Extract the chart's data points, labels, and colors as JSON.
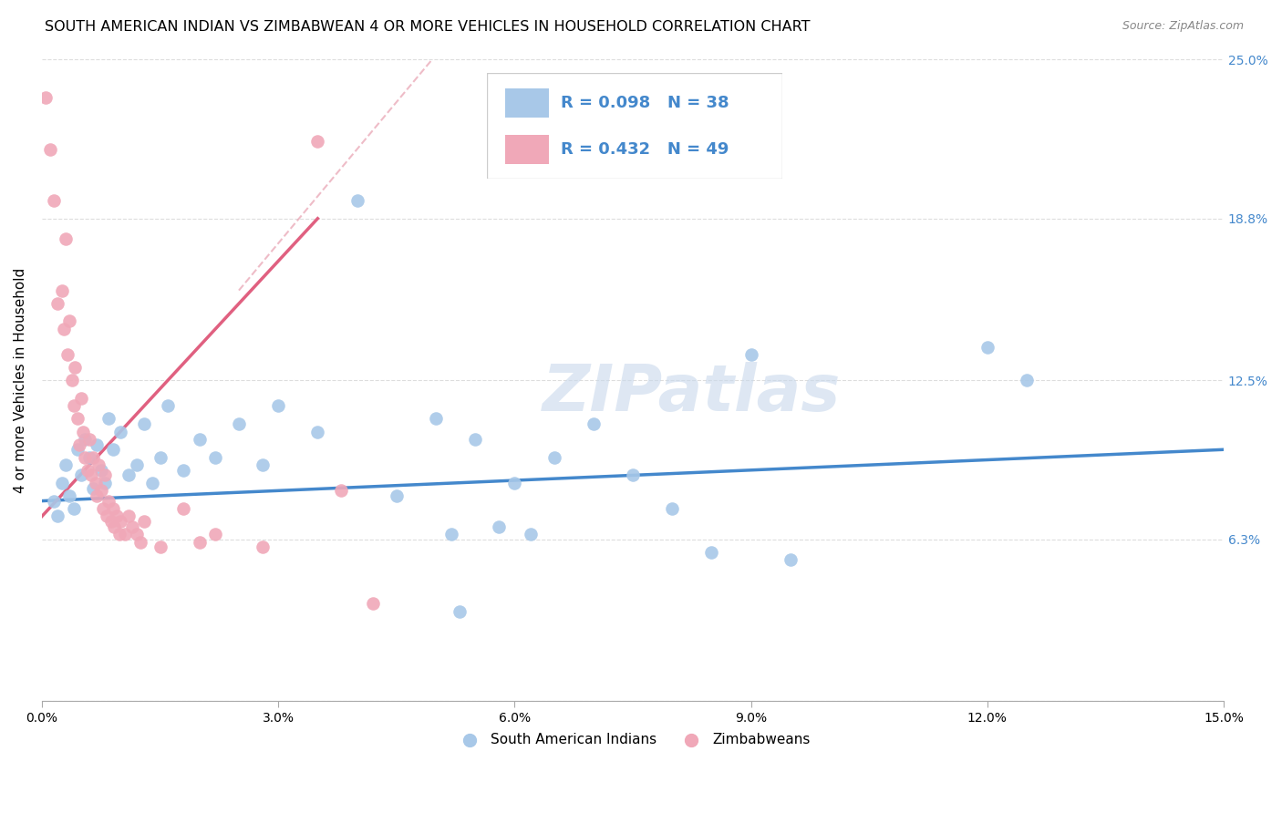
{
  "title": "SOUTH AMERICAN INDIAN VS ZIMBABWEAN 4 OR MORE VEHICLES IN HOUSEHOLD CORRELATION CHART",
  "source": "Source: ZipAtlas.com",
  "ylabel": "4 or more Vehicles in Household",
  "x_tick_labels": [
    "0.0%",
    "3.0%",
    "6.0%",
    "9.0%",
    "12.0%",
    "15.0%"
  ],
  "x_tick_vals": [
    0,
    3,
    6,
    9,
    12,
    15
  ],
  "y_tick_labels": [
    "",
    "6.3%",
    "12.5%",
    "18.8%",
    "25.0%"
  ],
  "y_tick_vals": [
    0,
    6.3,
    12.5,
    18.8,
    25.0
  ],
  "xlim": [
    0.0,
    15.0
  ],
  "ylim": [
    0.0,
    25.0
  ],
  "legend_labels": [
    "South American Indians",
    "Zimbabweans"
  ],
  "color_blue": "#a8c8e8",
  "color_pink": "#f0a8b8",
  "color_blue_line": "#4488cc",
  "color_pink_line": "#e06080",
  "color_legend_text": "#4488cc",
  "background_color": "#ffffff",
  "grid_color": "#dddddd",
  "watermark_text": "ZIPatlas",
  "watermark_color": "#c8d8ec",
  "watermark_alpha": 0.6,
  "blue_points": [
    [
      0.15,
      7.8
    ],
    [
      0.2,
      7.2
    ],
    [
      0.25,
      8.5
    ],
    [
      0.3,
      9.2
    ],
    [
      0.35,
      8.0
    ],
    [
      0.4,
      7.5
    ],
    [
      0.45,
      9.8
    ],
    [
      0.5,
      8.8
    ],
    [
      0.55,
      10.2
    ],
    [
      0.6,
      9.5
    ],
    [
      0.65,
      8.3
    ],
    [
      0.7,
      10.0
    ],
    [
      0.75,
      9.0
    ],
    [
      0.8,
      8.5
    ],
    [
      0.85,
      11.0
    ],
    [
      0.9,
      9.8
    ],
    [
      1.0,
      10.5
    ],
    [
      1.1,
      8.8
    ],
    [
      1.2,
      9.2
    ],
    [
      1.3,
      10.8
    ],
    [
      1.4,
      8.5
    ],
    [
      1.5,
      9.5
    ],
    [
      1.6,
      11.5
    ],
    [
      1.8,
      9.0
    ],
    [
      2.0,
      10.2
    ],
    [
      2.2,
      9.5
    ],
    [
      2.5,
      10.8
    ],
    [
      2.8,
      9.2
    ],
    [
      3.0,
      11.5
    ],
    [
      3.5,
      10.5
    ],
    [
      4.0,
      19.5
    ],
    [
      4.5,
      8.0
    ],
    [
      5.0,
      11.0
    ],
    [
      5.5,
      10.2
    ],
    [
      6.0,
      8.5
    ],
    [
      7.5,
      8.8
    ],
    [
      8.0,
      7.5
    ],
    [
      9.0,
      13.5
    ],
    [
      12.0,
      13.8
    ],
    [
      12.5,
      12.5
    ],
    [
      6.5,
      9.5
    ],
    [
      7.0,
      10.8
    ],
    [
      5.2,
      6.5
    ],
    [
      5.8,
      6.8
    ],
    [
      6.2,
      6.5
    ],
    [
      8.5,
      5.8
    ],
    [
      9.5,
      5.5
    ],
    [
      5.3,
      3.5
    ]
  ],
  "pink_points": [
    [
      0.05,
      23.5
    ],
    [
      0.1,
      21.5
    ],
    [
      0.15,
      19.5
    ],
    [
      0.2,
      15.5
    ],
    [
      0.25,
      16.0
    ],
    [
      0.28,
      14.5
    ],
    [
      0.3,
      18.0
    ],
    [
      0.32,
      13.5
    ],
    [
      0.35,
      14.8
    ],
    [
      0.38,
      12.5
    ],
    [
      0.4,
      11.5
    ],
    [
      0.42,
      13.0
    ],
    [
      0.45,
      11.0
    ],
    [
      0.48,
      10.0
    ],
    [
      0.5,
      11.8
    ],
    [
      0.52,
      10.5
    ],
    [
      0.55,
      9.5
    ],
    [
      0.58,
      9.0
    ],
    [
      0.6,
      10.2
    ],
    [
      0.62,
      8.8
    ],
    [
      0.65,
      9.5
    ],
    [
      0.68,
      8.5
    ],
    [
      0.7,
      8.0
    ],
    [
      0.72,
      9.2
    ],
    [
      0.75,
      8.2
    ],
    [
      0.78,
      7.5
    ],
    [
      0.8,
      8.8
    ],
    [
      0.82,
      7.2
    ],
    [
      0.85,
      7.8
    ],
    [
      0.88,
      7.0
    ],
    [
      0.9,
      7.5
    ],
    [
      0.92,
      6.8
    ],
    [
      0.95,
      7.2
    ],
    [
      0.98,
      6.5
    ],
    [
      1.0,
      7.0
    ],
    [
      1.05,
      6.5
    ],
    [
      1.1,
      7.2
    ],
    [
      1.15,
      6.8
    ],
    [
      1.2,
      6.5
    ],
    [
      1.25,
      6.2
    ],
    [
      1.3,
      7.0
    ],
    [
      1.5,
      6.0
    ],
    [
      1.8,
      7.5
    ],
    [
      2.0,
      6.2
    ],
    [
      2.2,
      6.5
    ],
    [
      2.8,
      6.0
    ],
    [
      3.5,
      21.8
    ],
    [
      3.8,
      8.2
    ],
    [
      4.2,
      3.8
    ]
  ],
  "title_fontsize": 11.5,
  "axis_label_fontsize": 11,
  "tick_fontsize": 10,
  "legend_fontsize": 13,
  "watermark_fontsize": 52
}
